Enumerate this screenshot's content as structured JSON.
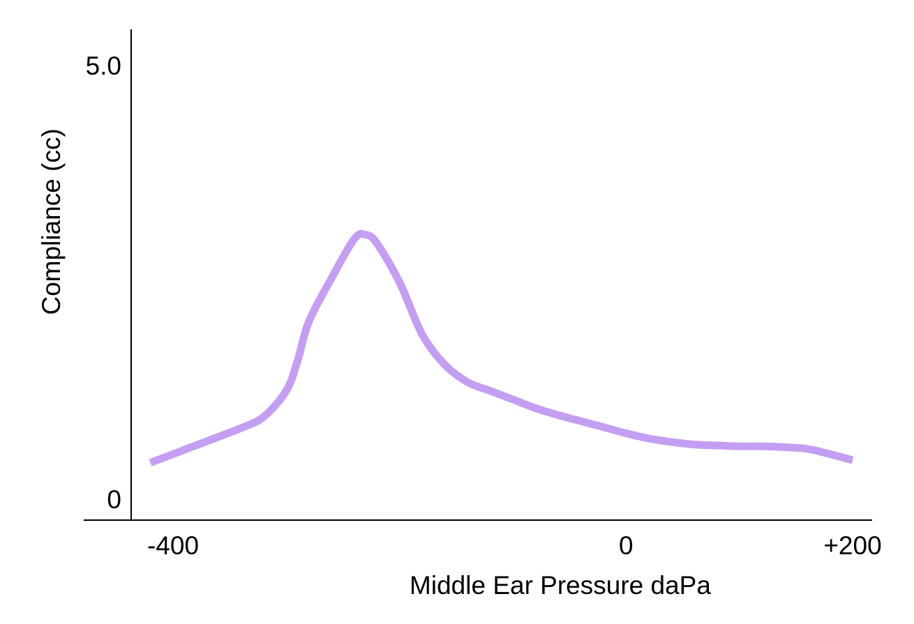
{
  "chart_data": {
    "type": "line",
    "xlabel": "Middle Ear Pressure daPa",
    "ylabel": "Compliance (cc)",
    "xlim": [
      -400,
      200
    ],
    "ylim": [
      0,
      5.0
    ],
    "x_ticks": [
      {
        "value": -400,
        "label": "-400"
      },
      {
        "value": 0,
        "label": "0"
      },
      {
        "value": 200,
        "label": "+200"
      }
    ],
    "y_ticks": [
      {
        "value": 5.0,
        "label": "5.0"
      },
      {
        "value": 0,
        "label": "0"
      }
    ],
    "grid": false,
    "series": [
      {
        "color": "#c49ef2",
        "x": [
          -420,
          -380,
          -340,
          -320,
          -300,
          -290,
          -280,
          -260,
          -240,
          -230,
          -220,
          -200,
          -180,
          -160,
          -140,
          -120,
          -100,
          -80,
          -60,
          -40,
          -20,
          0,
          20,
          40,
          60,
          80,
          100,
          120,
          140,
          160,
          180,
          200
        ],
        "y": [
          0.42,
          0.62,
          0.82,
          0.95,
          1.25,
          1.6,
          2.05,
          2.55,
          3.0,
          3.05,
          2.95,
          2.5,
          1.9,
          1.55,
          1.35,
          1.25,
          1.15,
          1.05,
          0.97,
          0.9,
          0.83,
          0.76,
          0.7,
          0.66,
          0.63,
          0.62,
          0.61,
          0.61,
          0.6,
          0.58,
          0.52,
          0.45
        ]
      }
    ]
  }
}
